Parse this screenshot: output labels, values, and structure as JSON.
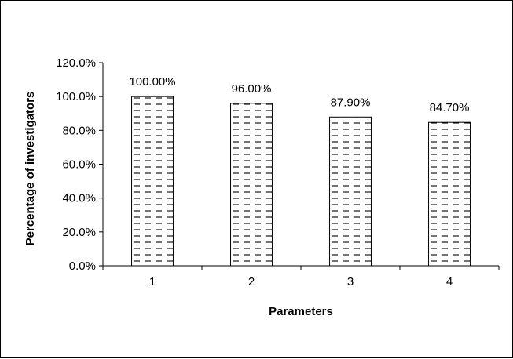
{
  "chart_data": {
    "type": "bar",
    "title": "",
    "xlabel": "Parameters",
    "ylabel": "Percentage of investigators",
    "categories": [
      "1",
      "2",
      "3",
      "4"
    ],
    "values": [
      100.0,
      96.0,
      87.9,
      84.7
    ],
    "data_labels": [
      "100.00%",
      "96.00%",
      "87.90%",
      "84.70%"
    ],
    "ylim": [
      0,
      120
    ],
    "y_ticks": [
      0,
      20,
      40,
      60,
      80,
      100,
      120
    ],
    "y_tick_labels": [
      "0.0%",
      "20.0%",
      "40.0%",
      "60.0%",
      "80.0%",
      "100.0%",
      "120.0%"
    ],
    "grid": false,
    "legend": "none",
    "bar_fill": "dashed-horizontal-hatch",
    "bar_color": "#ffffff",
    "stroke_color": "#000000"
  }
}
